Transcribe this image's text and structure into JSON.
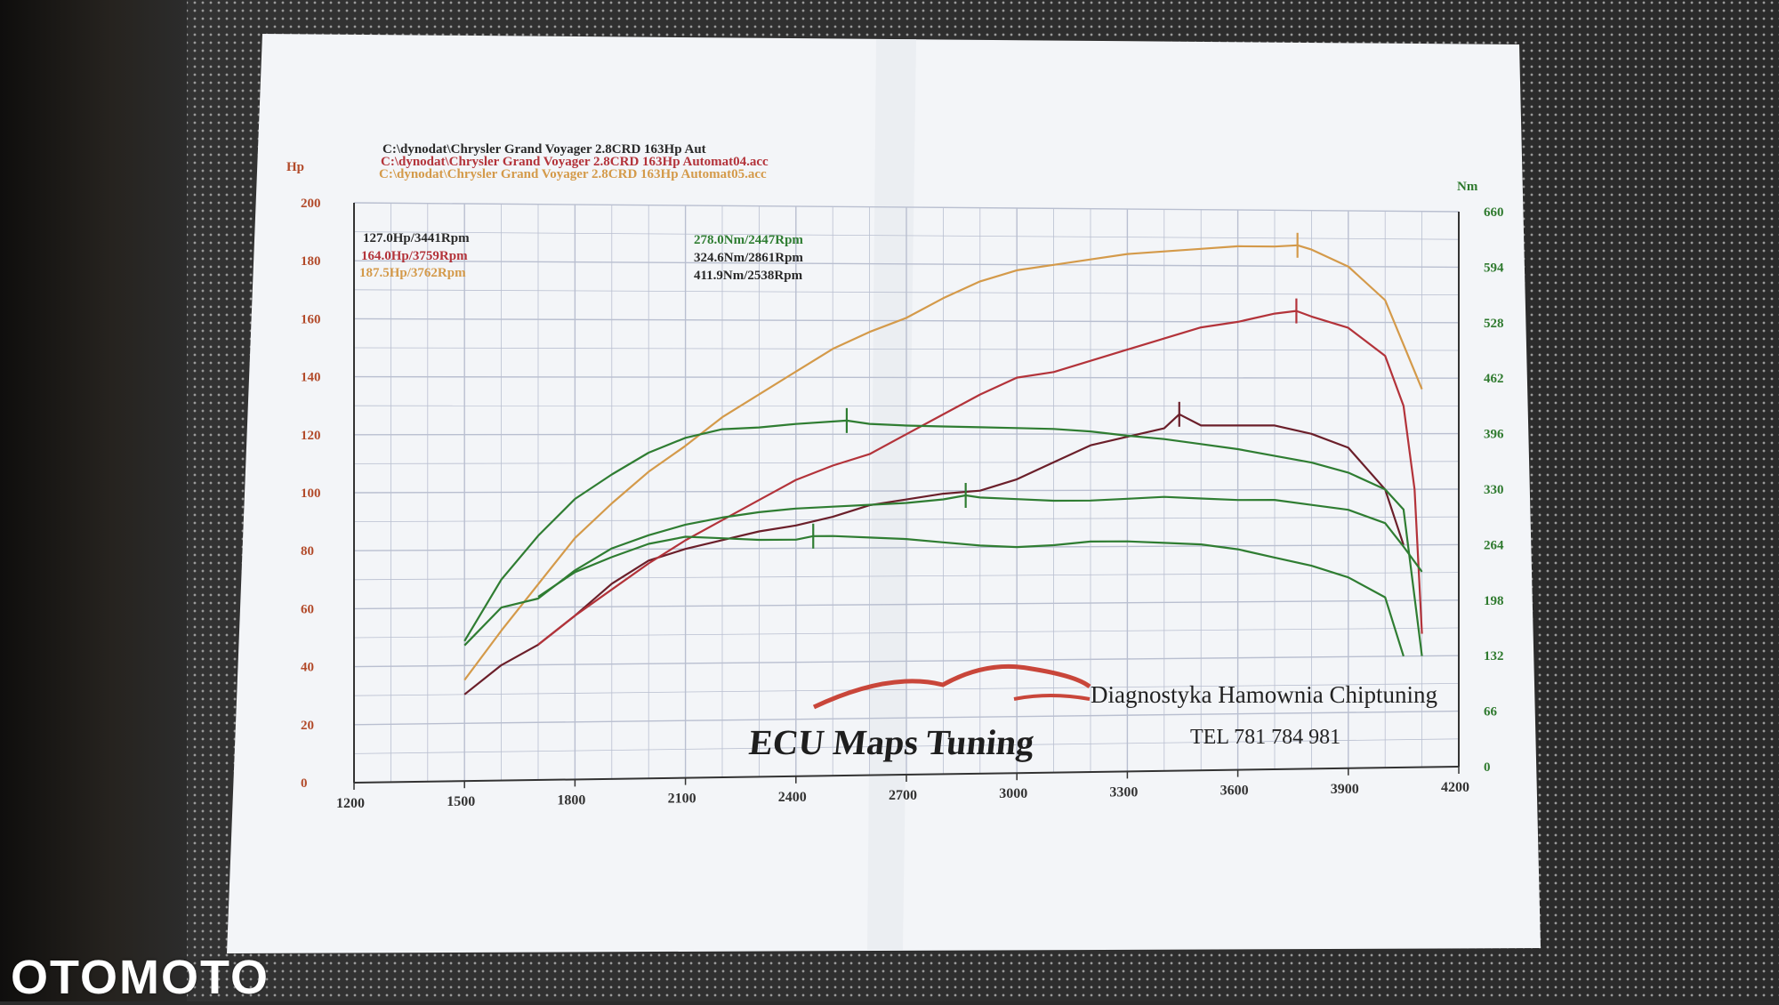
{
  "watermark": "OTOMOTO",
  "colors": {
    "paper": "#f4f6f9",
    "grid": "#b9bfd0",
    "run1": "#6b1f2a",
    "run2": "#b3333a",
    "run3": "#d49a4a",
    "torque": "#2f7d32",
    "hp_axis": "#b24a2a",
    "nm_axis": "#2f7a2f"
  },
  "files": [
    "C:\\dynodat\\Chrysler Grand Voyager 2.8CRD 163Hp Aut",
    "C:\\dynodat\\Chrysler Grand Voyager 2.8CRD 163Hp Automat04.acc",
    "C:\\dynodat\\Chrysler Grand Voyager 2.8CRD 163Hp Automat05.acc"
  ],
  "logo": {
    "name": "ECU Maps Tuning",
    "tagline": "Diagnostyka Hamownia Chiptuning",
    "phone": "TEL 781 784 981"
  },
  "chart_data": {
    "type": "line",
    "title": "",
    "xlabel": "",
    "ylabel": "Hp",
    "y2label": "Nm",
    "x_ticks": [
      "1200",
      "1500",
      "1800",
      "2100",
      "2400",
      "2700",
      "3000",
      "3300",
      "3600",
      "3900",
      "4200"
    ],
    "y_ticks": [
      "0",
      "20",
      "40",
      "60",
      "80",
      "100",
      "120",
      "140",
      "160",
      "180",
      "200"
    ],
    "y2_ticks": [
      "0",
      "66",
      "132",
      "198",
      "264",
      "330",
      "396",
      "462",
      "528",
      "594",
      "660"
    ],
    "xlim": [
      1200,
      4200
    ],
    "ylim": [
      0,
      200
    ],
    "y2lim": [
      0,
      660
    ],
    "power_labels": [
      "127.0Hp/3441Rpm",
      "164.0Hp/3759Rpm",
      "187.5Hp/3762Rpm"
    ],
    "torque_labels": [
      "278.0Nm/2447Rpm",
      "324.6Nm/2861Rpm",
      "411.9Nm/2538Rpm"
    ],
    "series": [
      {
        "name": "Power Aut (Hp)",
        "axis": "hp",
        "color_key": "run1",
        "x": [
          1500,
          1600,
          1700,
          1800,
          1900,
          2000,
          2100,
          2200,
          2300,
          2400,
          2500,
          2600,
          2700,
          2800,
          2900,
          3000,
          3100,
          3200,
          3300,
          3400,
          3441,
          3500,
          3600,
          3700,
          3800,
          3900,
          4000,
          4050
        ],
        "y": [
          30,
          40,
          47,
          57,
          68,
          76,
          80,
          83,
          86,
          88,
          91,
          95,
          97,
          99,
          100,
          104,
          110,
          116,
          119,
          122,
          127,
          123,
          123,
          123,
          120,
          115,
          100,
          80
        ],
        "peak": [
          3441,
          127.0
        ]
      },
      {
        "name": "Power Automat04 (Hp)",
        "axis": "hp",
        "color_key": "run2",
        "x": [
          1700,
          1800,
          1900,
          2000,
          2100,
          2200,
          2300,
          2400,
          2500,
          2600,
          2700,
          2800,
          2900,
          3000,
          3100,
          3200,
          3300,
          3400,
          3500,
          3600,
          3700,
          3759,
          3800,
          3900,
          4000,
          4050,
          4080,
          4100
        ],
        "y": [
          47,
          57,
          66,
          75,
          83,
          90,
          97,
          104,
          109,
          113,
          120,
          127,
          134,
          140,
          142,
          146,
          150,
          154,
          158,
          160,
          163,
          164,
          162,
          158,
          148,
          130,
          100,
          48
        ],
        "peak": [
          3759,
          164.0
        ]
      },
      {
        "name": "Power Automat05 (Hp)",
        "axis": "hp",
        "color_key": "run3",
        "x": [
          1500,
          1600,
          1700,
          1800,
          1900,
          2000,
          2100,
          2200,
          2300,
          2400,
          2500,
          2600,
          2700,
          2800,
          2900,
          3000,
          3100,
          3200,
          3300,
          3400,
          3500,
          3600,
          3700,
          3762,
          3800,
          3900,
          4000,
          4050,
          4100
        ],
        "y": [
          35,
          52,
          68,
          84,
          96,
          107,
          116,
          126,
          134,
          142,
          150,
          156,
          161,
          168,
          174,
          178,
          180,
          182,
          184,
          185,
          186,
          187,
          187,
          187.5,
          186,
          180,
          168,
          152,
          136
        ],
        "peak": [
          3762,
          187.5
        ]
      },
      {
        "name": "Torque Aut (Nm)",
        "axis": "nm",
        "color_key": "torque",
        "x": [
          1700,
          1800,
          1900,
          2000,
          2100,
          2200,
          2300,
          2400,
          2447,
          2500,
          2600,
          2700,
          2800,
          2900,
          3000,
          3100,
          3200,
          3300,
          3400,
          3500,
          3600,
          3700,
          3800,
          3900,
          4000,
          4050
        ],
        "y": [
          210,
          238,
          255,
          270,
          278,
          276,
          274,
          274,
          278,
          278,
          276,
          274,
          270,
          266,
          264,
          266,
          270,
          270,
          268,
          266,
          260,
          250,
          240,
          226,
          202,
          132
        ],
        "peak": [
          2447,
          278.0
        ]
      },
      {
        "name": "Torque Automat04 (Nm)",
        "axis": "nm",
        "color_key": "torque",
        "x": [
          1500,
          1600,
          1700,
          1800,
          1900,
          2000,
          2100,
          2200,
          2300,
          2400,
          2500,
          2600,
          2700,
          2800,
          2861,
          2900,
          3000,
          3100,
          3200,
          3300,
          3400,
          3500,
          3600,
          3700,
          3800,
          3900,
          4000,
          4050,
          4100
        ],
        "y": [
          155,
          198,
          208,
          240,
          265,
          280,
          292,
          300,
          306,
          310,
          312,
          314,
          316,
          320,
          324.6,
          322,
          320,
          318,
          318,
          320,
          322,
          320,
          318,
          318,
          312,
          306,
          290,
          262,
          232
        ],
        "peak": [
          2861,
          324.6
        ]
      },
      {
        "name": "Torque Automat05 (Nm)",
        "axis": "nm",
        "color_key": "torque",
        "x": [
          1500,
          1600,
          1700,
          1800,
          1900,
          2000,
          2100,
          2200,
          2300,
          2400,
          2538,
          2600,
          2700,
          2800,
          2900,
          3000,
          3100,
          3200,
          3300,
          3400,
          3500,
          3600,
          3700,
          3800,
          3900,
          4000,
          4050,
          4100
        ],
        "y": [
          160,
          230,
          280,
          322,
          350,
          375,
          392,
          402,
          404,
          408,
          411.9,
          408,
          406,
          405,
          404,
          403,
          402,
          399,
          394,
          390,
          384,
          378,
          370,
          362,
          350,
          330,
          306,
          132
        ],
        "peak": [
          2538,
          411.9
        ]
      }
    ]
  }
}
